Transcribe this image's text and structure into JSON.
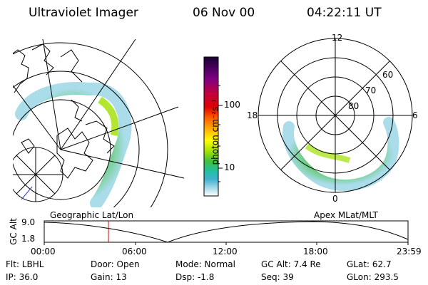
{
  "header": {
    "title": "Ultraviolet Imager",
    "date": "06 Nov 00",
    "time": "04:22:11 UT"
  },
  "colorbar": {
    "unit_label": "photon cm⁻²s⁻¹",
    "ticks": [
      "100",
      "10"
    ],
    "colors": [
      "#1a0030",
      "#4a0060",
      "#800080",
      "#c00040",
      "#e00000",
      "#ff6000",
      "#ffb000",
      "#ffff00",
      "#a0e000",
      "#40c040",
      "#20c0a0",
      "#40b0d0",
      "#a0d8e8",
      "#e8f4f8"
    ]
  },
  "left_panel": {
    "caption": "Geographic Lat/Lon"
  },
  "right_panel": {
    "caption": "Apex MLat/MLT",
    "mlt_labels": {
      "top": "12",
      "left": "18",
      "right": "6",
      "bottom": "0"
    },
    "lat_labels": [
      "60",
      "70",
      "80"
    ]
  },
  "timeline": {
    "ylabel": "GC Alt",
    "ytick_top": "9.0",
    "ytick_bottom": "1.8",
    "xticks": [
      "00:00",
      "06:00",
      "12:00",
      "18:00",
      "23:59"
    ],
    "marker_color": "#e00000"
  },
  "info": {
    "row1": {
      "filter": "Flt: LBHL",
      "door": "Door: Open",
      "mode": "Mode: Normal",
      "gc_alt": "GC Alt: 7.4 Re",
      "glat": "GLat:  62.7"
    },
    "row2": {
      "ip": "IP: 36.0",
      "gain": "Gain: 13",
      "dsp": "Dsp:   -1.8",
      "seq": "Seq: 39",
      "glon": "GLon: 293.5"
    }
  }
}
